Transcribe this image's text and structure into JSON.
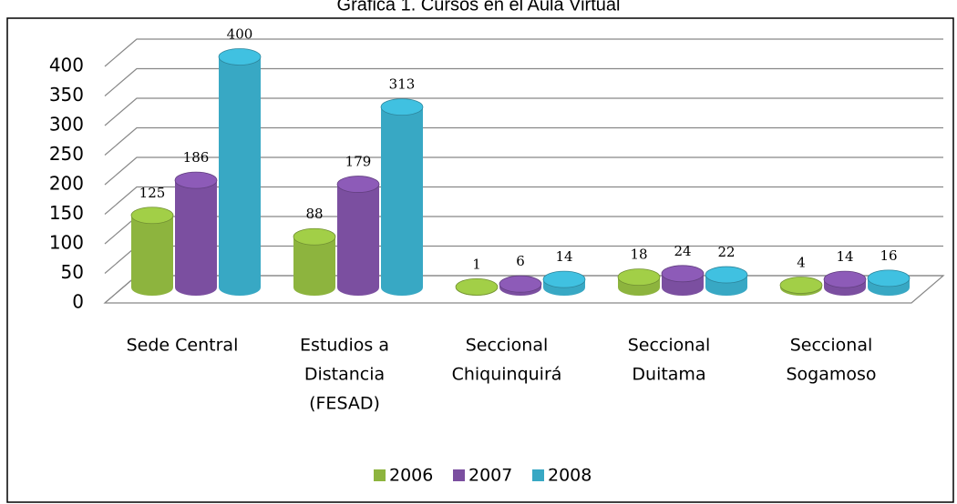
{
  "chart_data": {
    "type": "bar3d",
    "title": "Gráfica 1. Cursos en el Aula Virtual",
    "categories": [
      [
        "Sede Central"
      ],
      [
        "Estudios a",
        "Distancia",
        "(FESAD)"
      ],
      [
        "Seccional",
        "Chiquinquirá"
      ],
      [
        "Seccional",
        "Duitama"
      ],
      [
        "Seccional",
        "Sogamoso"
      ]
    ],
    "series": [
      {
        "name": "2006",
        "color": "#8db43e",
        "values": [
          125,
          88,
          1,
          18,
          4
        ]
      },
      {
        "name": "2007",
        "color": "#7b4fa0",
        "values": [
          186,
          179,
          6,
          24,
          14
        ]
      },
      {
        "name": "2008",
        "color": "#38a8c4",
        "values": [
          400,
          313,
          14,
          22,
          16
        ]
      }
    ],
    "ylim": [
      0,
      400
    ],
    "yticks": [
      0,
      50,
      100,
      150,
      200,
      250,
      300,
      350,
      400
    ],
    "grid": true,
    "legend": "bottom"
  }
}
